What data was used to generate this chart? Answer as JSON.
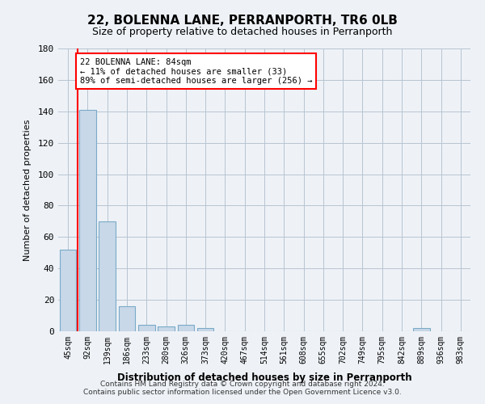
{
  "title": "22, BOLENNA LANE, PERRANPORTH, TR6 0LB",
  "subtitle": "Size of property relative to detached houses in Perranporth",
  "xlabel": "Distribution of detached houses by size in Perranporth",
  "ylabel": "Number of detached properties",
  "bar_labels": [
    "45sqm",
    "92sqm",
    "139sqm",
    "186sqm",
    "233sqm",
    "280sqm",
    "326sqm",
    "373sqm",
    "420sqm",
    "467sqm",
    "514sqm",
    "561sqm",
    "608sqm",
    "655sqm",
    "702sqm",
    "749sqm",
    "795sqm",
    "842sqm",
    "889sqm",
    "936sqm",
    "983sqm"
  ],
  "bar_values": [
    52,
    141,
    70,
    16,
    4,
    3,
    4,
    2,
    0,
    0,
    0,
    0,
    0,
    0,
    0,
    0,
    0,
    0,
    2,
    0,
    0
  ],
  "bar_color": "#c8d8e8",
  "bar_edge_color": "#7aaac8",
  "ylim": [
    0,
    180
  ],
  "yticks": [
    0,
    20,
    40,
    60,
    80,
    100,
    120,
    140,
    160,
    180
  ],
  "annotation_text_line1": "22 BOLENNA LANE: 84sqm",
  "annotation_text_line2": "← 11% of detached houses are smaller (33)",
  "annotation_text_line3": "89% of semi-detached houses are larger (256) →",
  "red_line_x": 0.5,
  "footer_line1": "Contains HM Land Registry data © Crown copyright and database right 2024.",
  "footer_line2": "Contains public sector information licensed under the Open Government Licence v3.0.",
  "background_color": "#eef2f7",
  "plot_background_color": "#eef2f7"
}
